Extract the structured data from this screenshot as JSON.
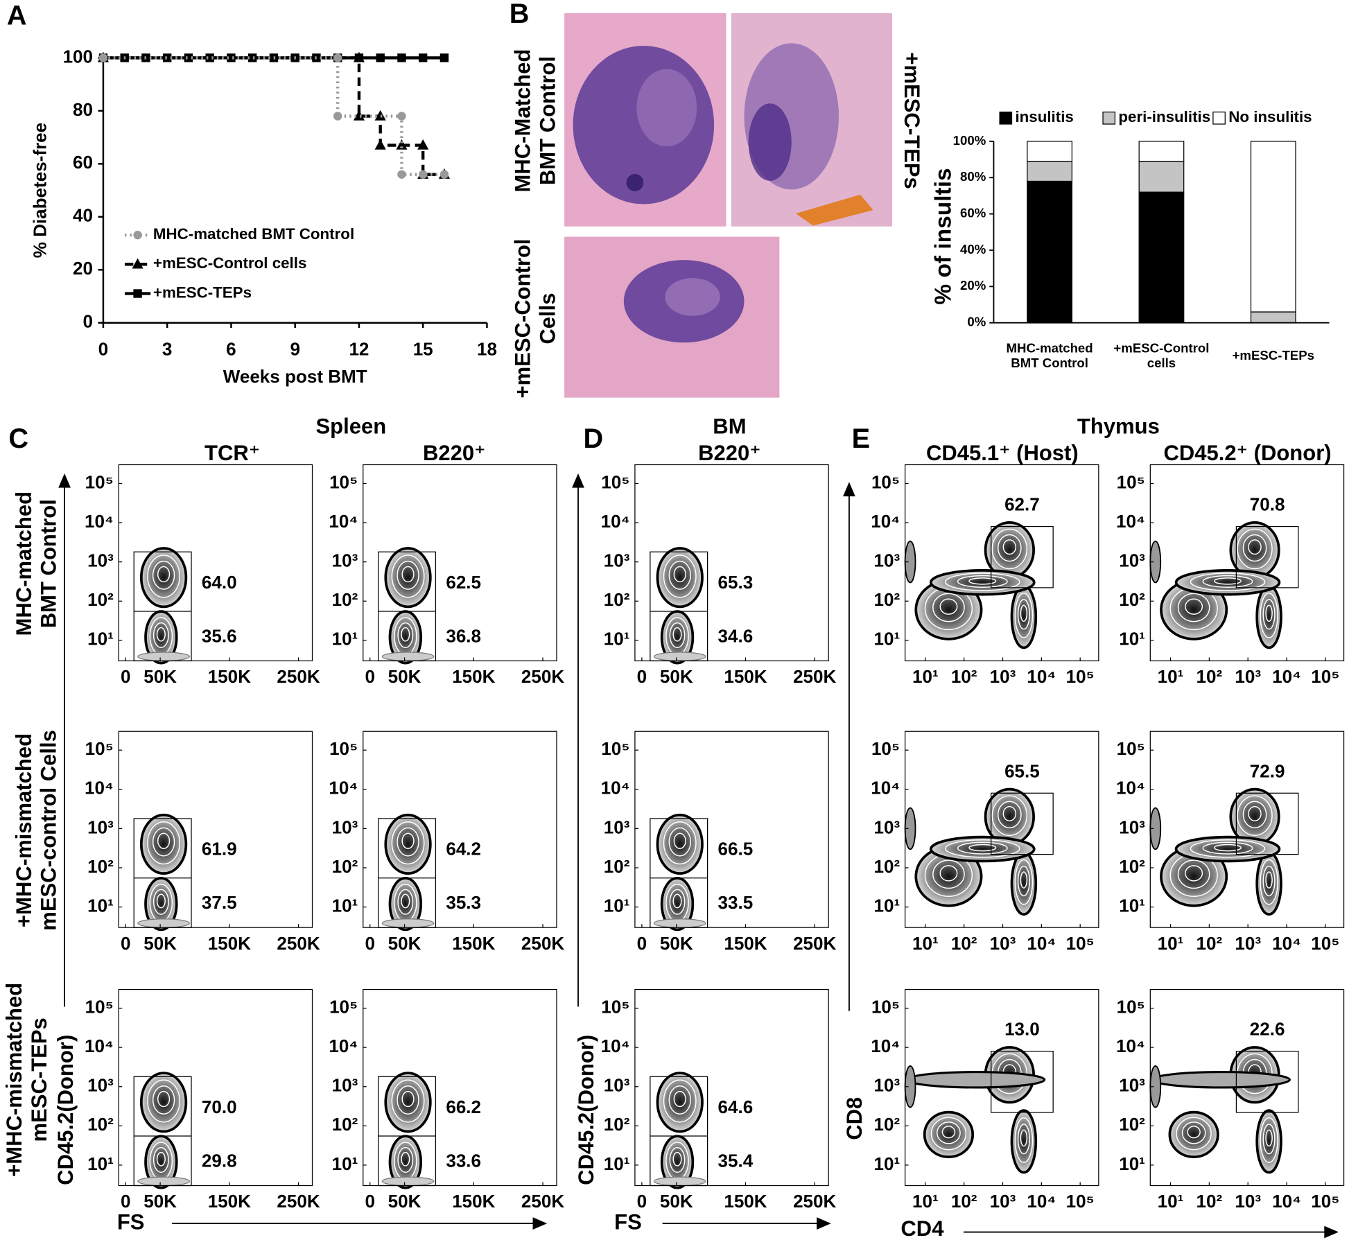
{
  "panel_labels": [
    "A",
    "B",
    "C",
    "D",
    "E"
  ],
  "chart_data": [
    {
      "type": "line",
      "ylabel": "% Diabetes-free",
      "xlabel": "Weeks post BMT",
      "xlim": [
        0,
        18
      ],
      "xticks": [
        0,
        3,
        6,
        9,
        12,
        15,
        18
      ],
      "ylim": [
        0,
        100
      ],
      "yticks": [
        0,
        20,
        40,
        60,
        80,
        100
      ],
      "series": [
        {
          "name": "MHC-matched BMT Control",
          "color": "#999999",
          "dash": "dotted",
          "marker": "circle",
          "x": [
            0,
            11,
            11,
            14,
            14,
            15,
            16
          ],
          "values": [
            100,
            100,
            78,
            78,
            56,
            56,
            56
          ]
        },
        {
          "name": "+mESC-Control cells",
          "color": "#000000",
          "dash": "dashed",
          "marker": "triangle",
          "x": [
            0,
            12,
            12,
            13,
            13,
            14,
            15,
            15,
            16
          ],
          "values": [
            100,
            100,
            78,
            78,
            67,
            67,
            67,
            56,
            56
          ]
        },
        {
          "name": "+mESC-TEPs",
          "color": "#000000",
          "dash": "solid",
          "marker": "square",
          "x": [
            0,
            1,
            2,
            3,
            4,
            5,
            6,
            7,
            8,
            9,
            10,
            11,
            12,
            13,
            14,
            15,
            16
          ],
          "values": [
            100,
            100,
            100,
            100,
            100,
            100,
            100,
            100,
            100,
            100,
            100,
            100,
            100,
            100,
            100,
            100,
            100
          ]
        }
      ]
    },
    {
      "type": "bar",
      "stacked": true,
      "ylabel": "% of insultis",
      "categories": [
        "MHC-matched\nBMT Control",
        "+mESC-Control\ncells",
        "+mESC-TEPs"
      ],
      "ylim": [
        0,
        100
      ],
      "yticks": [
        {
          "value": 0,
          "label": "0%"
        },
        {
          "value": 20,
          "label": "20%"
        },
        {
          "value": 40,
          "label": "40%"
        },
        {
          "value": 60,
          "label": "60%"
        },
        {
          "value": 80,
          "label": "80%"
        },
        {
          "value": 100,
          "label": "100%"
        }
      ],
      "series": [
        {
          "name": "insulitis",
          "color": "#000000",
          "values": [
            78,
            72,
            0
          ]
        },
        {
          "name": "peri-insulitis",
          "color": "#c4c4c4",
          "values": [
            11,
            17,
            6
          ]
        },
        {
          "name": "No insulitis",
          "color": "#ffffff",
          "values": [
            11,
            11,
            94
          ]
        }
      ]
    }
  ],
  "histology": {
    "labels": [
      "MHC-Matched\nBMT Control",
      "+mESC-TEPs",
      "+mESC-Control\nCells"
    ]
  },
  "flow": {
    "column_groups": [
      "Spleen",
      "BM",
      "Thymus"
    ],
    "columns": [
      "TCR⁺",
      "B220⁺",
      "B220⁺",
      "CD45.1⁺ (Host)",
      "CD45.2⁺ (Donor)"
    ],
    "rows": [
      "MHC-matched\nBMT Control",
      "+MHC-mismatched\nmESC-control Cells",
      "+MHC-mismatched\nmESC-TEPs"
    ],
    "y_axis": {
      "labels": [
        "CD45.2(Donor)",
        "CD8"
      ],
      "log": true,
      "ylim": [
        3,
        300000
      ],
      "yticks": [
        {
          "value": 10,
          "label": "10¹"
        },
        {
          "value": 100,
          "label": "10²"
        },
        {
          "value": 1000,
          "label": "10³"
        },
        {
          "value": 10000,
          "label": "10⁴"
        },
        {
          "value": 100000,
          "label": "10⁵"
        }
      ]
    },
    "fs_axis": {
      "label": "FS",
      "xlim": [
        -10000,
        270000
      ],
      "xticks": [
        0,
        {
          "value": 50000,
          "label": "50K"
        },
        {
          "value": 150000,
          "label": "150K"
        },
        {
          "value": 250000,
          "label": "250K"
        }
      ]
    },
    "cd4_axis": {
      "label": "CD4",
      "log": true,
      "xlim": [
        3,
        300000
      ],
      "xticks": [
        {
          "value": 10,
          "label": "10¹"
        },
        {
          "value": 100,
          "label": "10²"
        },
        {
          "value": 1000,
          "label": "10³"
        },
        {
          "value": 10000,
          "label": "10⁴"
        },
        {
          "value": 100000,
          "label": "10⁵"
        }
      ]
    },
    "gates": [
      [
        [
          "64.0",
          "35.6"
        ],
        [
          "62.5",
          "36.8"
        ],
        [
          "65.3",
          "34.6"
        ],
        [
          "62.7"
        ],
        [
          "70.8"
        ]
      ],
      [
        [
          "61.9",
          "37.5"
        ],
        [
          "64.2",
          "35.3"
        ],
        [
          "66.5",
          "33.5"
        ],
        [
          "65.5"
        ],
        [
          "72.9"
        ]
      ],
      [
        [
          "70.0",
          "29.8"
        ],
        [
          "66.2",
          "33.6"
        ],
        [
          "64.6",
          "35.4"
        ],
        [
          "13.0"
        ],
        [
          "22.6"
        ]
      ]
    ]
  }
}
